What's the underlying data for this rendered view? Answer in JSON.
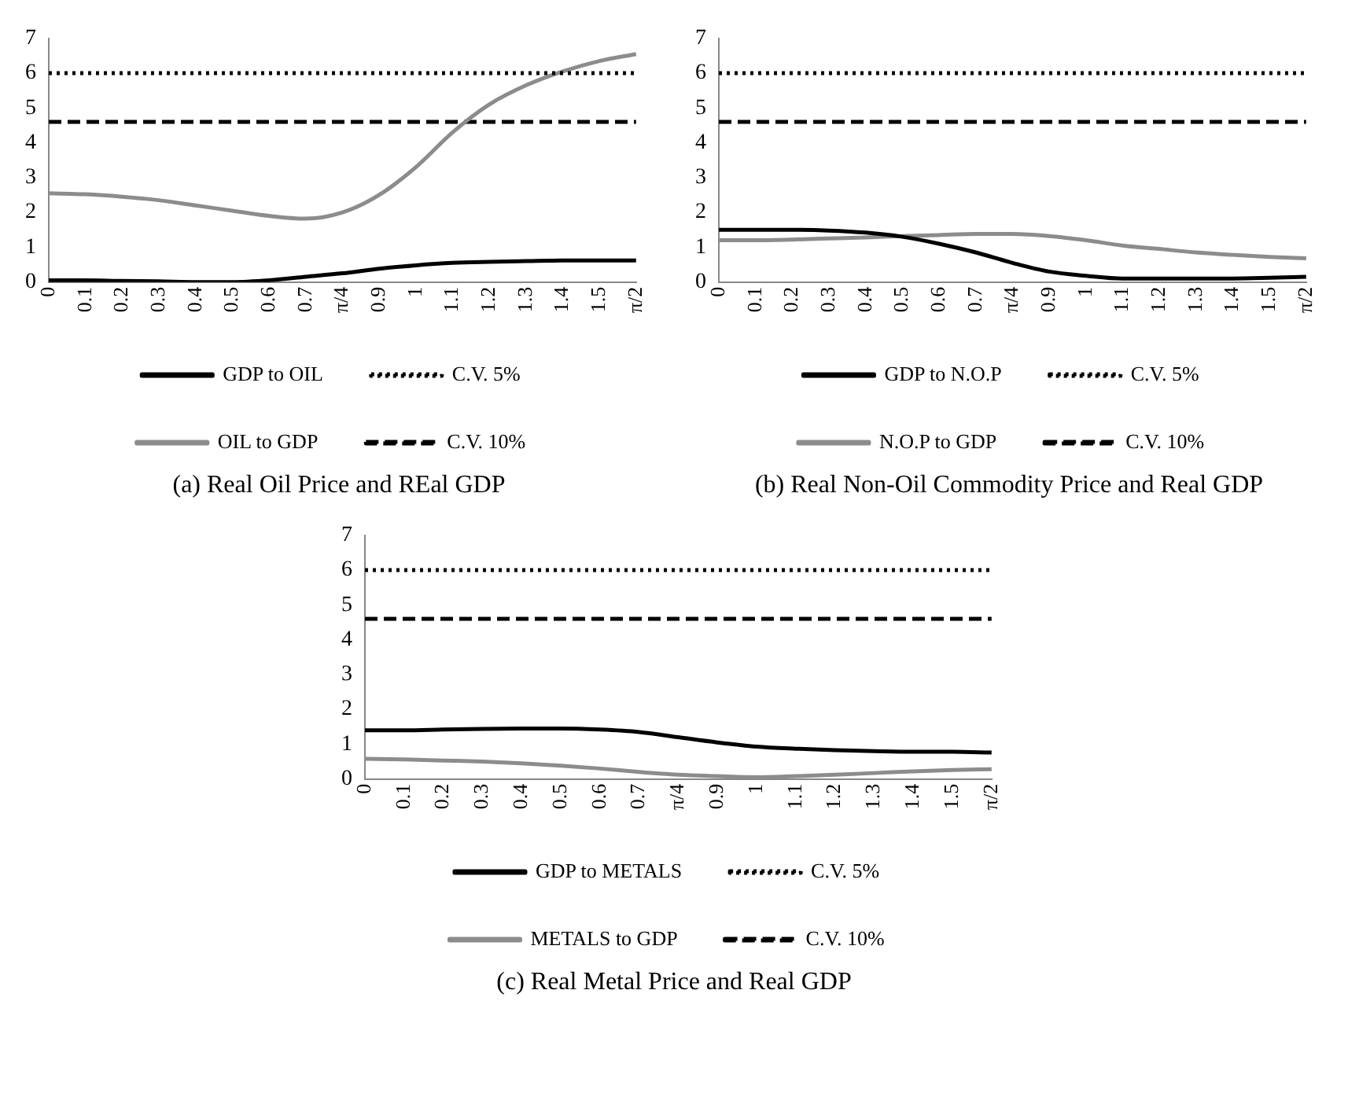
{
  "chart_data": [
    {
      "type": "line",
      "title": "(a) Real Oil Price and REal GDP",
      "categories": [
        "0",
        "0.1",
        "0.2",
        "0.3",
        "0.4",
        "0.5",
        "0.6",
        "0.7",
        "π/4",
        "0.9",
        "1",
        "1.1",
        "1.2",
        "1.3",
        "1.4",
        "1.5",
        "π/2"
      ],
      "ylim": [
        0,
        7
      ],
      "yticks": [
        0,
        1,
        2,
        3,
        4,
        5,
        6,
        7
      ],
      "grid": false,
      "legend": "bottom",
      "marker": "none",
      "series": [
        {
          "name": "GDP to OIL",
          "color": "#000000",
          "line_style": "solid",
          "values": [
            0.05,
            0.05,
            0.03,
            0.02,
            0.0,
            0.0,
            0.05,
            0.15,
            0.25,
            0.38,
            0.48,
            0.55,
            0.58,
            0.6,
            0.62,
            0.62,
            0.62
          ]
        },
        {
          "name": "C.V. 5%",
          "color": "#000000",
          "line_style": "dotted",
          "values": [
            6,
            6,
            6,
            6,
            6,
            6,
            6,
            6,
            6,
            6,
            6,
            6,
            6,
            6,
            6,
            6,
            6
          ]
        },
        {
          "name": "OIL to GDP",
          "color": "#8c8c8c",
          "line_style": "solid",
          "values": [
            2.55,
            2.52,
            2.45,
            2.35,
            2.2,
            2.05,
            1.9,
            1.82,
            2.0,
            2.5,
            3.3,
            4.3,
            5.1,
            5.65,
            6.05,
            6.35,
            6.55
          ]
        },
        {
          "name": "C.V. 10%",
          "color": "#000000",
          "line_style": "dashed",
          "values": [
            4.6,
            4.6,
            4.6,
            4.6,
            4.6,
            4.6,
            4.6,
            4.6,
            4.6,
            4.6,
            4.6,
            4.6,
            4.6,
            4.6,
            4.6,
            4.6,
            4.6
          ]
        }
      ]
    },
    {
      "type": "line",
      "title": "(b) Real Non-Oil Commodity Price and Real GDP",
      "categories": [
        "0",
        "0.1",
        "0.2",
        "0.3",
        "0.4",
        "0.5",
        "0.6",
        "0.7",
        "π/4",
        "0.9",
        "1",
        "1.1",
        "1.2",
        "1.3",
        "1.4",
        "1.5",
        "π/2"
      ],
      "ylim": [
        0,
        7
      ],
      "yticks": [
        0,
        1,
        2,
        3,
        4,
        5,
        6,
        7
      ],
      "grid": false,
      "legend": "bottom",
      "marker": "none",
      "series": [
        {
          "name": "GDP to N.O.P",
          "color": "#000000",
          "line_style": "solid",
          "values": [
            1.5,
            1.5,
            1.5,
            1.48,
            1.42,
            1.3,
            1.1,
            0.85,
            0.55,
            0.3,
            0.18,
            0.1,
            0.1,
            0.1,
            0.1,
            0.12,
            0.15
          ]
        },
        {
          "name": "C.V. 5%",
          "color": "#000000",
          "line_style": "dotted",
          "values": [
            6,
            6,
            6,
            6,
            6,
            6,
            6,
            6,
            6,
            6,
            6,
            6,
            6,
            6,
            6,
            6,
            6
          ]
        },
        {
          "name": "N.O.P to GDP",
          "color": "#8c8c8c",
          "line_style": "solid",
          "values": [
            1.2,
            1.2,
            1.22,
            1.25,
            1.28,
            1.32,
            1.35,
            1.38,
            1.38,
            1.32,
            1.2,
            1.05,
            0.95,
            0.85,
            0.78,
            0.72,
            0.68
          ]
        },
        {
          "name": "C.V. 10%",
          "color": "#000000",
          "line_style": "dashed",
          "values": [
            4.6,
            4.6,
            4.6,
            4.6,
            4.6,
            4.6,
            4.6,
            4.6,
            4.6,
            4.6,
            4.6,
            4.6,
            4.6,
            4.6,
            4.6,
            4.6,
            4.6
          ]
        }
      ]
    },
    {
      "type": "line",
      "title": "(c) Real Metal Price and Real GDP",
      "categories": [
        "0",
        "0.1",
        "0.2",
        "0.3",
        "0.4",
        "0.5",
        "0.6",
        "0.7",
        "π/4",
        "0.9",
        "1",
        "1.1",
        "1.2",
        "1.3",
        "1.4",
        "1.5",
        "π/2"
      ],
      "ylim": [
        0,
        7
      ],
      "yticks": [
        0,
        1,
        2,
        3,
        4,
        5,
        6,
        7
      ],
      "grid": false,
      "legend": "bottom",
      "marker": "none",
      "series": [
        {
          "name": "GDP to METALS",
          "color": "#000000",
          "line_style": "solid",
          "values": [
            1.4,
            1.4,
            1.42,
            1.44,
            1.45,
            1.45,
            1.42,
            1.35,
            1.2,
            1.05,
            0.93,
            0.87,
            0.83,
            0.8,
            0.78,
            0.78,
            0.76
          ]
        },
        {
          "name": "C.V. 5%",
          "color": "#000000",
          "line_style": "dotted",
          "values": [
            6,
            6,
            6,
            6,
            6,
            6,
            6,
            6,
            6,
            6,
            6,
            6,
            6,
            6,
            6,
            6,
            6
          ]
        },
        {
          "name": "METALS to GDP",
          "color": "#8c8c8c",
          "line_style": "solid",
          "values": [
            0.58,
            0.56,
            0.53,
            0.5,
            0.45,
            0.38,
            0.3,
            0.2,
            0.12,
            0.08,
            0.05,
            0.08,
            0.12,
            0.17,
            0.22,
            0.26,
            0.28
          ]
        },
        {
          "name": "C.V. 10%",
          "color": "#000000",
          "line_style": "dashed",
          "values": [
            4.6,
            4.6,
            4.6,
            4.6,
            4.6,
            4.6,
            4.6,
            4.6,
            4.6,
            4.6,
            4.6,
            4.6,
            4.6,
            4.6,
            4.6,
            4.6,
            4.6
          ]
        }
      ]
    }
  ]
}
